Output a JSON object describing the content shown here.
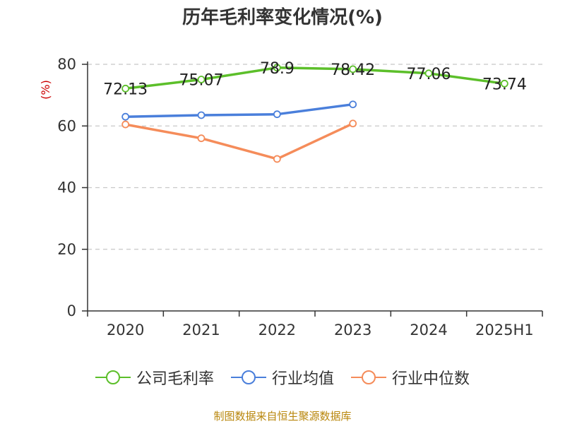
{
  "chart_data": {
    "type": "line",
    "title": "历年毛利率变化情况(%)",
    "ylabel": "(%)",
    "xlabel": "",
    "categories": [
      "2020",
      "2021",
      "2022",
      "2023",
      "2024",
      "2025H1"
    ],
    "ylim": [
      0,
      80
    ],
    "yticks": [
      0,
      20,
      40,
      60,
      80
    ],
    "grid": true,
    "legend_position": "bottom",
    "series": [
      {
        "name": "公司毛利率",
        "color": "#5cbf2a",
        "values": [
          72.13,
          75.07,
          78.9,
          78.42,
          77.06,
          73.74
        ],
        "labels": [
          "72.13",
          "75.07",
          "78.9",
          "78.42",
          "77.06",
          "73.74"
        ]
      },
      {
        "name": "行业均值",
        "color": "#4a7fdb",
        "values": [
          63,
          63.5,
          63.8,
          67,
          null,
          null
        ]
      },
      {
        "name": "行业中位数",
        "color": "#f58c5a",
        "values": [
          60.5,
          56,
          49.3,
          60.8,
          null,
          null
        ]
      }
    ]
  },
  "source": "制图数据来自恒生聚源数据库"
}
